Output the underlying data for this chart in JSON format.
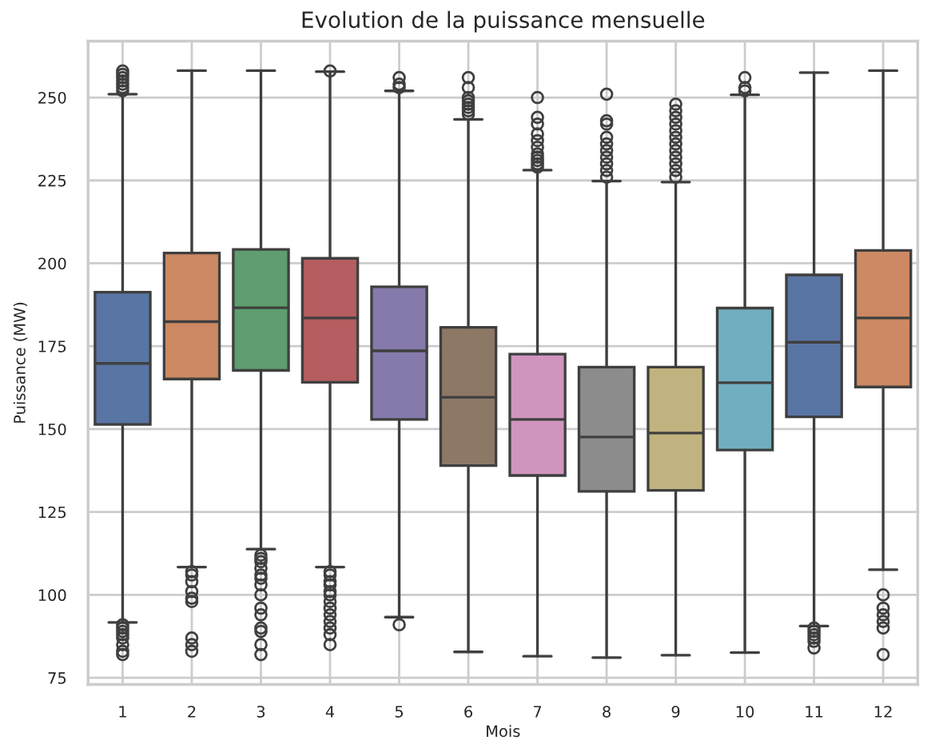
{
  "chart_data": {
    "type": "box",
    "title": "Evolution de la puissance mensuelle",
    "xlabel": "Mois",
    "ylabel": "Puissance (MW)",
    "categories": [
      "1",
      "2",
      "3",
      "4",
      "5",
      "6",
      "7",
      "8",
      "9",
      "10",
      "11",
      "12"
    ],
    "colors": [
      "#5975a4",
      "#cc8963",
      "#5f9e6e",
      "#b55d60",
      "#857aab",
      "#8d7866",
      "#d095bf",
      "#8c8c8c",
      "#c1b37f",
      "#71aec0",
      "#5975a4",
      "#cc8963"
    ],
    "boxes": [
      {
        "low": 91.7,
        "q1": 151.4,
        "median": 169.8,
        "q3": 191.3,
        "high": 251,
        "outliers": [
          252,
          253,
          254,
          255,
          256,
          257,
          258,
          82,
          83,
          85,
          87,
          88,
          89,
          90,
          91
        ]
      },
      {
        "low": 108.4,
        "q1": 165.1,
        "median": 182.4,
        "q3": 203.1,
        "high": 258.1,
        "outliers": [
          107,
          106,
          104,
          101,
          99,
          98,
          87,
          85,
          83
        ]
      },
      {
        "low": 113.8,
        "q1": 167.7,
        "median": 186.6,
        "q3": 204.2,
        "high": 258.1,
        "outliers": [
          112,
          111,
          110,
          108,
          106,
          105,
          103,
          100,
          96,
          94,
          90,
          89,
          85,
          82
        ]
      },
      {
        "low": 108.4,
        "q1": 164.1,
        "median": 183.5,
        "q3": 201.5,
        "high": 257.8,
        "outliers": [
          258,
          107,
          106,
          104,
          103,
          101,
          100,
          98,
          96,
          94,
          92,
          90,
          88,
          85
        ]
      },
      {
        "low": 93.3,
        "q1": 152.9,
        "median": 173.6,
        "q3": 192.9,
        "high": 252,
        "outliers": [
          253,
          254,
          256,
          91
        ]
      },
      {
        "low": 82.8,
        "q1": 139.0,
        "median": 159.6,
        "q3": 180.7,
        "high": 243.4,
        "outliers": [
          245,
          246,
          247,
          248,
          249,
          250,
          253,
          256
        ]
      },
      {
        "low": 81.5,
        "q1": 136.0,
        "median": 152.9,
        "q3": 172.6,
        "high": 228.1,
        "outliers": [
          229,
          230,
          231,
          232,
          233,
          235,
          237,
          239,
          242,
          244,
          250
        ]
      },
      {
        "low": 81.1,
        "q1": 131.2,
        "median": 147.6,
        "q3": 168.7,
        "high": 224.8,
        "outliers": [
          226,
          228,
          230,
          232,
          234,
          236,
          238,
          242,
          243,
          251
        ]
      },
      {
        "low": 81.8,
        "q1": 131.5,
        "median": 148.8,
        "q3": 168.7,
        "high": 224.5,
        "outliers": [
          226,
          228,
          230,
          232,
          234,
          236,
          238,
          240,
          242,
          244,
          246,
          248
        ]
      },
      {
        "low": 82.6,
        "q1": 143.7,
        "median": 164.0,
        "q3": 186.5,
        "high": 250.8,
        "outliers": [
          252,
          253,
          256
        ]
      },
      {
        "low": 90.6,
        "q1": 153.7,
        "median": 176.2,
        "q3": 196.5,
        "high": 257.5,
        "outliers": [
          84,
          86,
          87,
          88,
          89,
          90
        ]
      },
      {
        "low": 107.6,
        "q1": 162.7,
        "median": 183.5,
        "q3": 203.9,
        "high": 258.1,
        "outliers": [
          100,
          96,
          94,
          92,
          90,
          82
        ]
      }
    ],
    "ylim": [
      73,
      267
    ],
    "yticks": [
      75,
      100,
      125,
      150,
      175,
      200,
      225,
      250
    ],
    "grid": true
  }
}
